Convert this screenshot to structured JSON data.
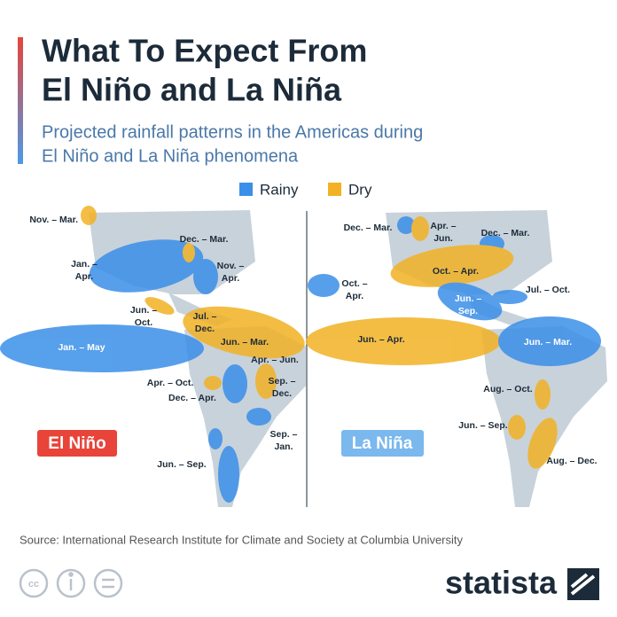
{
  "header": {
    "title_lines": [
      "What To Expect From",
      "El Niño and La Niña"
    ],
    "subtitle_lines": [
      "Projected rainfall patterns in the Americas during",
      "El Niño and La Niña phenomena"
    ]
  },
  "legend": [
    "Rainy",
    "Dry"
  ],
  "maps": [
    {
      "name": "El Niño",
      "labels": [
        [
          "Nov. – Mar."
        ],
        [
          "Jan. –",
          "Apr."
        ],
        [
          "Dec. – Mar."
        ],
        [
          "Nov. –",
          "Apr."
        ],
        [
          "Jun. –",
          "Oct."
        ],
        [
          "Jul. –",
          "Dec."
        ],
        [
          "Jan. – May"
        ],
        [
          "Jun. – Mar."
        ],
        [
          "Apr. – Jun."
        ],
        [
          "Apr. – Oct."
        ],
        [
          "Dec. – Apr."
        ],
        [
          "Sep. –",
          "Dec."
        ],
        [
          "Sep. –",
          "Jan."
        ],
        [
          "Jun. – Sep."
        ]
      ]
    },
    {
      "name": "La Niña",
      "labels": [
        [
          "Dec. – Mar."
        ],
        [
          "Apr. –",
          "Jun."
        ],
        [
          "Dec. – Mar."
        ],
        [
          "Oct. –",
          "Apr."
        ],
        [
          "Oct. – Apr."
        ],
        [
          "Jun. –",
          "Sep."
        ],
        [
          "Jul. – Oct."
        ],
        [
          "Jun. – Apr."
        ],
        [
          "Jun. – Mar."
        ],
        [
          "Aug. – Oct."
        ],
        [
          "Jun. – Sep."
        ],
        [
          "Aug. – Dec."
        ]
      ]
    }
  ],
  "source": "Source: International Research Institute for Climate and Society at Columbia University",
  "brand": "statista"
}
